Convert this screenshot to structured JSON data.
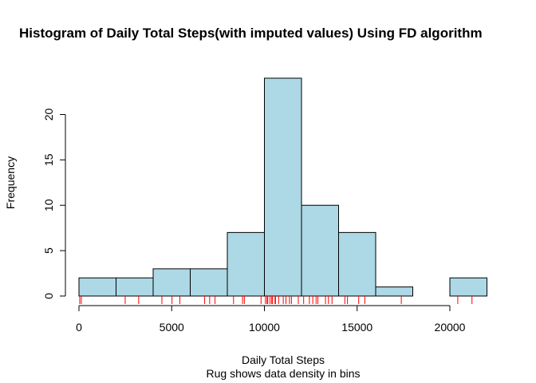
{
  "chart_data": {
    "type": "bar",
    "title": "Histogram of Daily Total Steps(with imputed values) Using FD algorithm",
    "xlabel": "Daily Total Steps",
    "subtitle": "Rug shows data density in bins",
    "ylabel": "Frequency",
    "bin_edges": [
      0,
      2000,
      4000,
      6000,
      8000,
      10000,
      12000,
      14000,
      16000,
      18000,
      20000,
      22000
    ],
    "values": [
      2,
      2,
      3,
      3,
      7,
      24,
      10,
      7,
      1,
      0,
      2
    ],
    "xlim": [
      0,
      22000
    ],
    "ylim": [
      0,
      24
    ],
    "xticks": [
      0,
      5000,
      10000,
      15000,
      20000
    ],
    "yticks": [
      0,
      5,
      10,
      15,
      20
    ],
    "bar_color": "#ADD8E6",
    "bar_border_color": "#000000",
    "rug_color": "#FF0000",
    "rug": [
      41,
      126,
      2492,
      3219,
      4472,
      5018,
      5441,
      6778,
      7047,
      7336,
      8334,
      8821,
      8918,
      9819,
      10056,
      10139,
      10183,
      10304,
      10395,
      10439,
      10571,
      10600,
      10766,
      11015,
      11162,
      11352,
      11458,
      11829,
      12116,
      12426,
      12608,
      12787,
      12883,
      13294,
      13452,
      13646,
      14339,
      14478,
      15084,
      15414,
      17382,
      20427,
      21194
    ],
    "grid": false
  }
}
